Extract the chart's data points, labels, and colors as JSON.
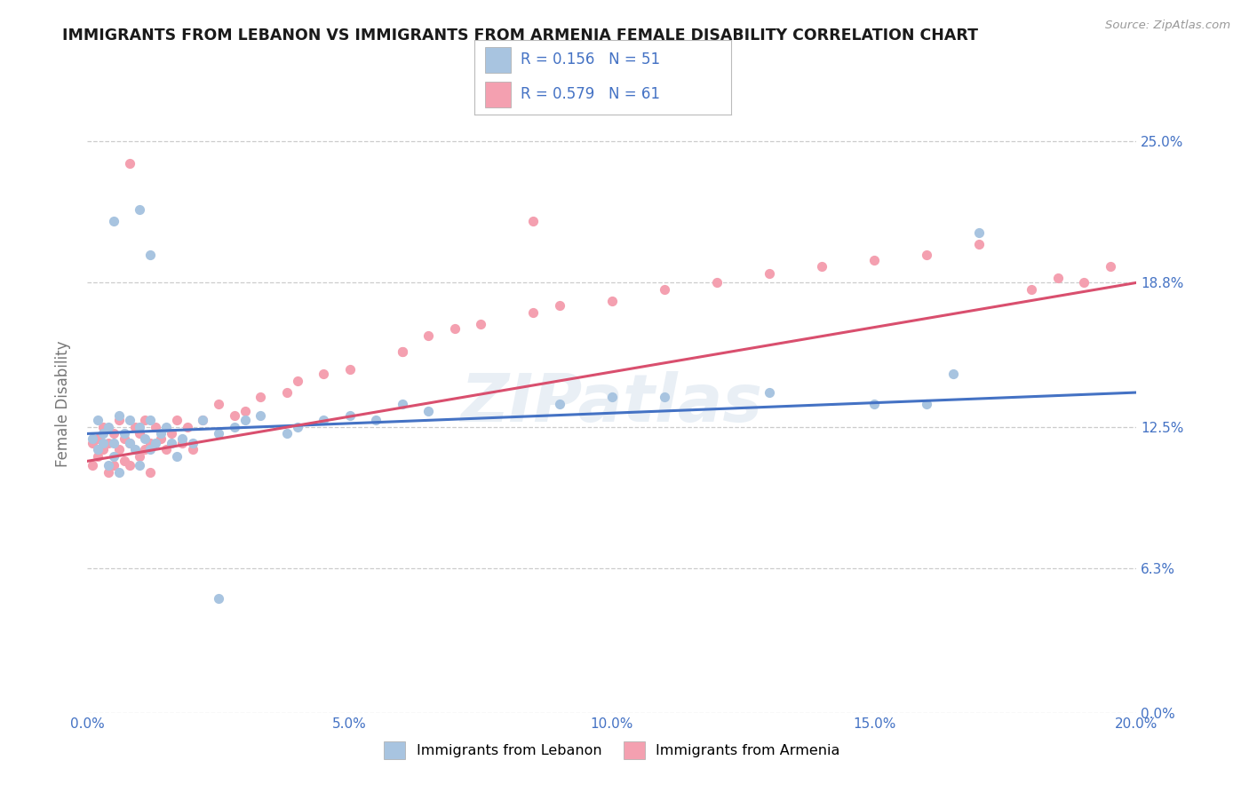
{
  "title": "IMMIGRANTS FROM LEBANON VS IMMIGRANTS FROM ARMENIA FEMALE DISABILITY CORRELATION CHART",
  "source": "Source: ZipAtlas.com",
  "ylabel": "Female Disability",
  "xlim": [
    0.0,
    0.2
  ],
  "ylim": [
    0.0,
    0.27
  ],
  "yticks": [
    0.0,
    0.063,
    0.125,
    0.188,
    0.25
  ],
  "ytick_labels": [
    "0.0%",
    "6.3%",
    "12.5%",
    "18.8%",
    "25.0%"
  ],
  "xticks": [
    0.0,
    0.05,
    0.1,
    0.15,
    0.2
  ],
  "xtick_labels": [
    "0.0%",
    "5.0%",
    "10.0%",
    "15.0%",
    "20.0%"
  ],
  "r_lebanon": 0.156,
  "n_lebanon": 51,
  "r_armenia": 0.579,
  "n_armenia": 61,
  "lebanon_scatter_color": "#a8c4e0",
  "armenia_scatter_color": "#f4a0b0",
  "lebanon_line_color": "#4472c4",
  "armenia_line_color": "#d94f6e",
  "bg_color": "#ffffff",
  "grid_color": "#cccccc",
  "title_color": "#1a1a1a",
  "tick_color": "#4472c4",
  "axis_label_color": "#777777",
  "lebanon_x": [
    0.001,
    0.002,
    0.002,
    0.003,
    0.003,
    0.004,
    0.004,
    0.005,
    0.005,
    0.006,
    0.006,
    0.007,
    0.008,
    0.008,
    0.009,
    0.01,
    0.01,
    0.011,
    0.012,
    0.012,
    0.013,
    0.014,
    0.015,
    0.016,
    0.017,
    0.018,
    0.02,
    0.022,
    0.025,
    0.028,
    0.03,
    0.033,
    0.038,
    0.04,
    0.045,
    0.05,
    0.055,
    0.06,
    0.065,
    0.09,
    0.1,
    0.11,
    0.13,
    0.15,
    0.16,
    0.165,
    0.17,
    0.025,
    0.01,
    0.005,
    0.012
  ],
  "lebanon_y": [
    0.12,
    0.128,
    0.115,
    0.118,
    0.122,
    0.108,
    0.125,
    0.118,
    0.112,
    0.13,
    0.105,
    0.122,
    0.118,
    0.128,
    0.115,
    0.125,
    0.108,
    0.12,
    0.115,
    0.128,
    0.118,
    0.122,
    0.125,
    0.118,
    0.112,
    0.12,
    0.118,
    0.128,
    0.122,
    0.125,
    0.128,
    0.13,
    0.122,
    0.125,
    0.128,
    0.13,
    0.128,
    0.135,
    0.132,
    0.135,
    0.138,
    0.138,
    0.14,
    0.135,
    0.135,
    0.148,
    0.21,
    0.05,
    0.22,
    0.215,
    0.2
  ],
  "armenia_x": [
    0.001,
    0.001,
    0.002,
    0.002,
    0.003,
    0.003,
    0.004,
    0.004,
    0.005,
    0.005,
    0.006,
    0.006,
    0.007,
    0.007,
    0.008,
    0.008,
    0.009,
    0.01,
    0.01,
    0.011,
    0.011,
    0.012,
    0.012,
    0.013,
    0.014,
    0.015,
    0.016,
    0.017,
    0.018,
    0.019,
    0.02,
    0.022,
    0.025,
    0.028,
    0.03,
    0.033,
    0.038,
    0.04,
    0.045,
    0.05,
    0.06,
    0.065,
    0.07,
    0.075,
    0.085,
    0.09,
    0.1,
    0.11,
    0.12,
    0.13,
    0.14,
    0.15,
    0.16,
    0.17,
    0.18,
    0.185,
    0.19,
    0.195,
    0.008,
    0.06,
    0.085
  ],
  "armenia_y": [
    0.118,
    0.108,
    0.112,
    0.12,
    0.115,
    0.125,
    0.105,
    0.118,
    0.108,
    0.122,
    0.115,
    0.128,
    0.11,
    0.12,
    0.108,
    0.118,
    0.125,
    0.112,
    0.122,
    0.115,
    0.128,
    0.105,
    0.118,
    0.125,
    0.12,
    0.115,
    0.122,
    0.128,
    0.118,
    0.125,
    0.115,
    0.128,
    0.135,
    0.13,
    0.132,
    0.138,
    0.14,
    0.145,
    0.148,
    0.15,
    0.158,
    0.165,
    0.168,
    0.17,
    0.175,
    0.178,
    0.18,
    0.185,
    0.188,
    0.192,
    0.195,
    0.198,
    0.2,
    0.205,
    0.185,
    0.19,
    0.188,
    0.195,
    0.24,
    0.158,
    0.215
  ]
}
